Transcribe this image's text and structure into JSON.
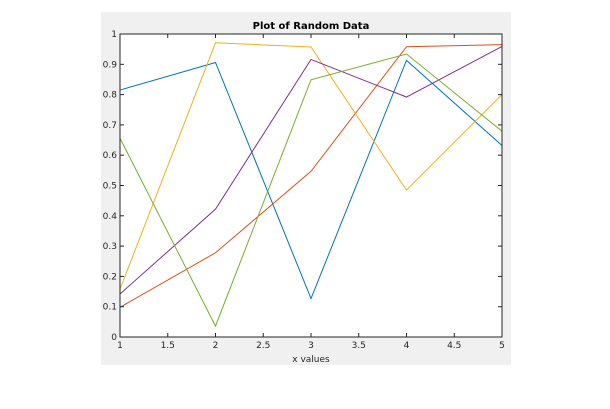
{
  "chart_data": {
    "type": "line",
    "title": "Plot of Random Data",
    "xlabel": "x values",
    "ylabel": "",
    "x": [
      1,
      2,
      3,
      4,
      5
    ],
    "xlim": [
      1,
      5
    ],
    "ylim": [
      0,
      1
    ],
    "xticks": [
      "1",
      "1.5",
      "2",
      "2.5",
      "3",
      "3.5",
      "4",
      "4.5",
      "5"
    ],
    "yticks": [
      "0",
      "0.1",
      "0.2",
      "0.3",
      "0.4",
      "0.5",
      "0.6",
      "0.7",
      "0.8",
      "0.9",
      "1"
    ],
    "grid": false,
    "series": [
      {
        "color": "#0072bd",
        "values": [
          0.815,
          0.906,
          0.127,
          0.913,
          0.632
        ]
      },
      {
        "color": "#d95319",
        "values": [
          0.098,
          0.278,
          0.547,
          0.958,
          0.965
        ]
      },
      {
        "color": "#edb120",
        "values": [
          0.158,
          0.971,
          0.957,
          0.485,
          0.8
        ]
      },
      {
        "color": "#7e2f8e",
        "values": [
          0.142,
          0.422,
          0.916,
          0.792,
          0.959
        ]
      },
      {
        "color": "#77ac30",
        "values": [
          0.656,
          0.036,
          0.849,
          0.934,
          0.679
        ]
      }
    ]
  }
}
